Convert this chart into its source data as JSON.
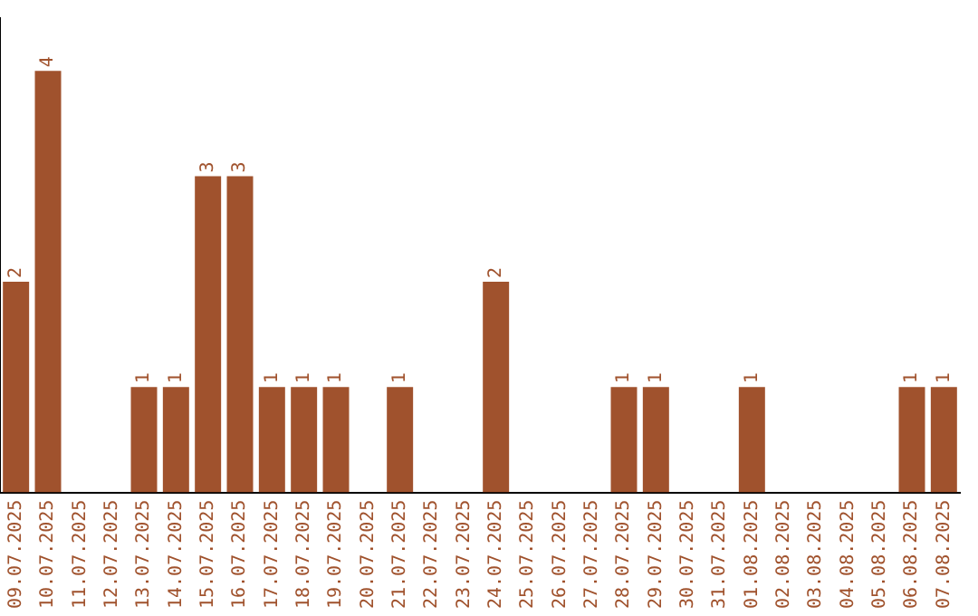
{
  "chart_data": {
    "type": "bar",
    "categories": [
      "09.07.2025",
      "10.07.2025",
      "11.07.2025",
      "12.07.2025",
      "13.07.2025",
      "14.07.2025",
      "15.07.2025",
      "16.07.2025",
      "17.07.2025",
      "18.07.2025",
      "19.07.2025",
      "20.07.2025",
      "21.07.2025",
      "22.07.2025",
      "23.07.2025",
      "24.07.2025",
      "25.07.2025",
      "26.07.2025",
      "27.07.2025",
      "28.07.2025",
      "29.07.2025",
      "30.07.2025",
      "31.07.2025",
      "01.08.2025",
      "02.08.2025",
      "03.08.2025",
      "04.08.2025",
      "05.08.2025",
      "06.08.2025",
      "07.08.2025"
    ],
    "values": [
      2,
      4,
      0,
      0,
      1,
      1,
      3,
      3,
      1,
      1,
      1,
      0,
      1,
      0,
      0,
      2,
      0,
      0,
      0,
      1,
      1,
      0,
      0,
      1,
      0,
      0,
      0,
      0,
      1,
      1
    ],
    "value_labels": [
      "2",
      "4",
      null,
      null,
      "1",
      "1",
      "3",
      "3",
      "1",
      "1",
      "1",
      null,
      "1",
      null,
      null,
      "2",
      null,
      null,
      null,
      "1",
      "1",
      null,
      null,
      "1",
      null,
      null,
      null,
      null,
      "1",
      "1"
    ],
    "color": "#a0522d",
    "grid": false,
    "legend": false
  }
}
